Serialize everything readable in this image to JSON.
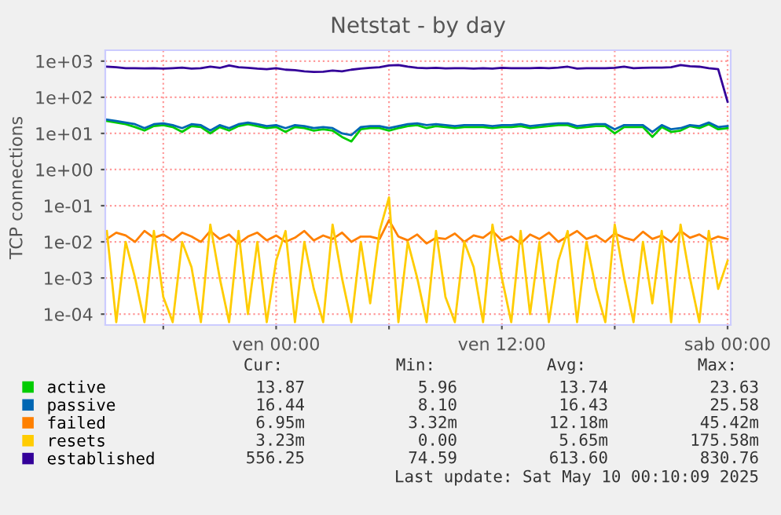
{
  "chart_data": {
    "type": "line",
    "title": "Netstat - by day",
    "ylabel": "TCP connections",
    "x": [
      "2025-05-08T15:00",
      "2025-05-08T15:30",
      "2025-05-08T16:00",
      "2025-05-08T16:30",
      "2025-05-08T17:00",
      "2025-05-08T17:30",
      "2025-05-08T18:00",
      "2025-05-08T18:30",
      "2025-05-08T19:00",
      "2025-05-08T19:30",
      "2025-05-08T20:00",
      "2025-05-08T20:30",
      "2025-05-08T21:00",
      "2025-05-08T21:30",
      "2025-05-08T22:00",
      "2025-05-08T22:30",
      "2025-05-08T23:00",
      "2025-05-08T23:30",
      "2025-05-09T00:00",
      "2025-05-09T00:30",
      "2025-05-09T01:00",
      "2025-05-09T01:30",
      "2025-05-09T02:00",
      "2025-05-09T02:30",
      "2025-05-09T03:00",
      "2025-05-09T03:30",
      "2025-05-09T04:00",
      "2025-05-09T04:30",
      "2025-05-09T05:00",
      "2025-05-09T05:30",
      "2025-05-09T06:00",
      "2025-05-09T06:30",
      "2025-05-09T07:00",
      "2025-05-09T07:30",
      "2025-05-09T08:00",
      "2025-05-09T08:30",
      "2025-05-09T09:00",
      "2025-05-09T09:30",
      "2025-05-09T10:00",
      "2025-05-09T10:30",
      "2025-05-09T11:00",
      "2025-05-09T11:30",
      "2025-05-09T12:00",
      "2025-05-09T12:30",
      "2025-05-09T13:00",
      "2025-05-09T13:30",
      "2025-05-09T14:00",
      "2025-05-09T14:30",
      "2025-05-09T15:00",
      "2025-05-09T15:30",
      "2025-05-09T16:00",
      "2025-05-09T16:30",
      "2025-05-09T17:00",
      "2025-05-09T17:30",
      "2025-05-09T18:00",
      "2025-05-09T18:30",
      "2025-05-09T19:00",
      "2025-05-09T19:30",
      "2025-05-09T20:00",
      "2025-05-09T20:30",
      "2025-05-09T21:00",
      "2025-05-09T21:30",
      "2025-05-09T22:00",
      "2025-05-09T22:30",
      "2025-05-09T23:00",
      "2025-05-09T23:30",
      "2025-05-10T00:00"
    ],
    "series": [
      {
        "name": "active",
        "color": "#00cc00",
        "values": [
          22,
          20,
          18,
          15,
          12,
          16,
          17,
          15,
          11,
          16,
          15,
          10,
          15,
          12,
          16,
          18,
          16,
          14,
          15,
          11,
          15,
          14,
          12,
          13,
          12,
          8,
          6,
          13,
          14,
          14,
          12,
          14,
          16,
          17,
          14,
          16,
          15,
          14,
          15,
          15,
          15,
          14,
          15,
          15,
          16,
          14,
          15,
          16,
          17,
          17,
          14,
          15,
          16,
          16,
          10,
          15,
          15,
          15,
          8,
          15,
          11,
          12,
          16,
          14,
          18,
          13,
          14
        ]
      },
      {
        "name": "passive",
        "color": "#0066b3",
        "values": [
          24,
          22,
          20,
          18,
          14,
          18,
          19,
          17,
          14,
          18,
          17,
          12,
          17,
          14,
          18,
          20,
          18,
          16,
          17,
          14,
          17,
          16,
          14,
          15,
          14,
          10,
          9,
          15,
          16,
          16,
          14,
          16,
          18,
          19,
          17,
          18,
          17,
          16,
          17,
          17,
          17,
          16,
          17,
          17,
          18,
          16,
          17,
          18,
          19,
          19,
          16,
          17,
          18,
          18,
          13,
          17,
          17,
          17,
          11,
          17,
          13,
          14,
          17,
          16,
          20,
          15,
          16
        ]
      },
      {
        "name": "failed",
        "color": "#ff8000",
        "values": [
          0.012,
          0.018,
          0.015,
          0.01,
          0.02,
          0.013,
          0.016,
          0.011,
          0.018,
          0.014,
          0.01,
          0.02,
          0.012,
          0.016,
          0.009,
          0.014,
          0.018,
          0.011,
          0.015,
          0.01,
          0.013,
          0.02,
          0.011,
          0.015,
          0.012,
          0.018,
          0.01,
          0.014,
          0.014,
          0.012,
          0.04,
          0.014,
          0.011,
          0.016,
          0.009,
          0.013,
          0.012,
          0.017,
          0.01,
          0.015,
          0.013,
          0.02,
          0.011,
          0.014,
          0.009,
          0.016,
          0.012,
          0.018,
          0.01,
          0.014,
          0.02,
          0.012,
          0.015,
          0.01,
          0.017,
          0.013,
          0.011,
          0.019,
          0.012,
          0.015,
          0.01,
          0.02,
          0.013,
          0.016,
          0.011,
          0.014,
          0.012
        ]
      },
      {
        "name": "resets",
        "color": "#ffcc00",
        "values": [
          0.02,
          6e-05,
          0.01,
          0.001,
          6e-05,
          0.02,
          0.0003,
          6e-05,
          0.01,
          0.002,
          6e-05,
          0.03,
          0.001,
          6e-05,
          0.02,
          0.0001,
          0.01,
          6e-05,
          0.003,
          0.02,
          6e-05,
          0.01,
          0.0005,
          6e-05,
          0.03,
          0.001,
          6e-05,
          0.01,
          0.0002,
          0.02,
          0.17,
          6e-05,
          0.01,
          0.001,
          6e-05,
          0.02,
          0.0003,
          6e-05,
          0.01,
          0.002,
          6e-05,
          0.03,
          0.001,
          6e-05,
          0.02,
          0.0001,
          0.01,
          6e-05,
          0.003,
          0.02,
          6e-05,
          0.01,
          0.0005,
          6e-05,
          0.03,
          0.001,
          6e-05,
          0.01,
          0.0002,
          0.02,
          6e-05,
          0.03,
          0.001,
          6e-05,
          0.02,
          0.0005,
          0.003
        ]
      },
      {
        "name": "established",
        "color": "#330099",
        "values": [
          700,
          680,
          640,
          640,
          630,
          640,
          620,
          640,
          660,
          620,
          640,
          700,
          650,
          760,
          680,
          650,
          620,
          600,
          640,
          580,
          560,
          520,
          500,
          510,
          550,
          520,
          580,
          620,
          650,
          680,
          760,
          780,
          700,
          650,
          640,
          650,
          630,
          640,
          640,
          620,
          640,
          620,
          650,
          640,
          640,
          640,
          650,
          640,
          660,
          700,
          620,
          640,
          640,
          640,
          650,
          700,
          640,
          650,
          660,
          660,
          680,
          780,
          720,
          700,
          640,
          600,
          75
        ]
      }
    ],
    "log": "y",
    "ylim": [
      5e-05,
      2000
    ],
    "yticks": [
      {
        "value": 0.0001,
        "label": "1e-04"
      },
      {
        "value": 0.001,
        "label": "1e-03"
      },
      {
        "value": 0.01,
        "label": "1e-02"
      },
      {
        "value": 0.1,
        "label": "1e-01"
      },
      {
        "value": 1,
        "label": "1e+00"
      },
      {
        "value": 10,
        "label": "1e+01"
      },
      {
        "value": 100,
        "label": "1e+02"
      },
      {
        "value": 1000,
        "label": "1e+03"
      }
    ],
    "xlim": [
      "2025-05-08T14:55",
      "2025-05-10T00:10"
    ],
    "xticks": [
      {
        "value": "2025-05-08T18:00",
        "label": null
      },
      {
        "value": "2025-05-09T00:00",
        "label": "ven 00:00"
      },
      {
        "value": "2025-05-09T06:00",
        "label": null
      },
      {
        "value": "2025-05-09T12:00",
        "label": "ven 12:00"
      },
      {
        "value": "2025-05-09T18:00",
        "label": null
      },
      {
        "value": "2025-05-10T00:00",
        "label": "sab 00:00"
      }
    ],
    "grid": true,
    "legend": "bottom left",
    "marker": "none",
    "line_style": "solid",
    "annotations": [
      "Cur:",
      "Min:",
      "Avg:",
      "Max:",
      "13.87",
      "5.96",
      "13.74",
      "23.63",
      "16.44",
      "8.10",
      "16.43",
      "25.58",
      "6.95m",
      "3.32m",
      "12.18m",
      "45.42m",
      "3.23m",
      "0.00",
      "5.65m",
      "175.58m",
      "556.25",
      "74.59",
      "613.60",
      "830.76",
      "Last update: Sat May 10 00:10:09 2025"
    ]
  }
}
